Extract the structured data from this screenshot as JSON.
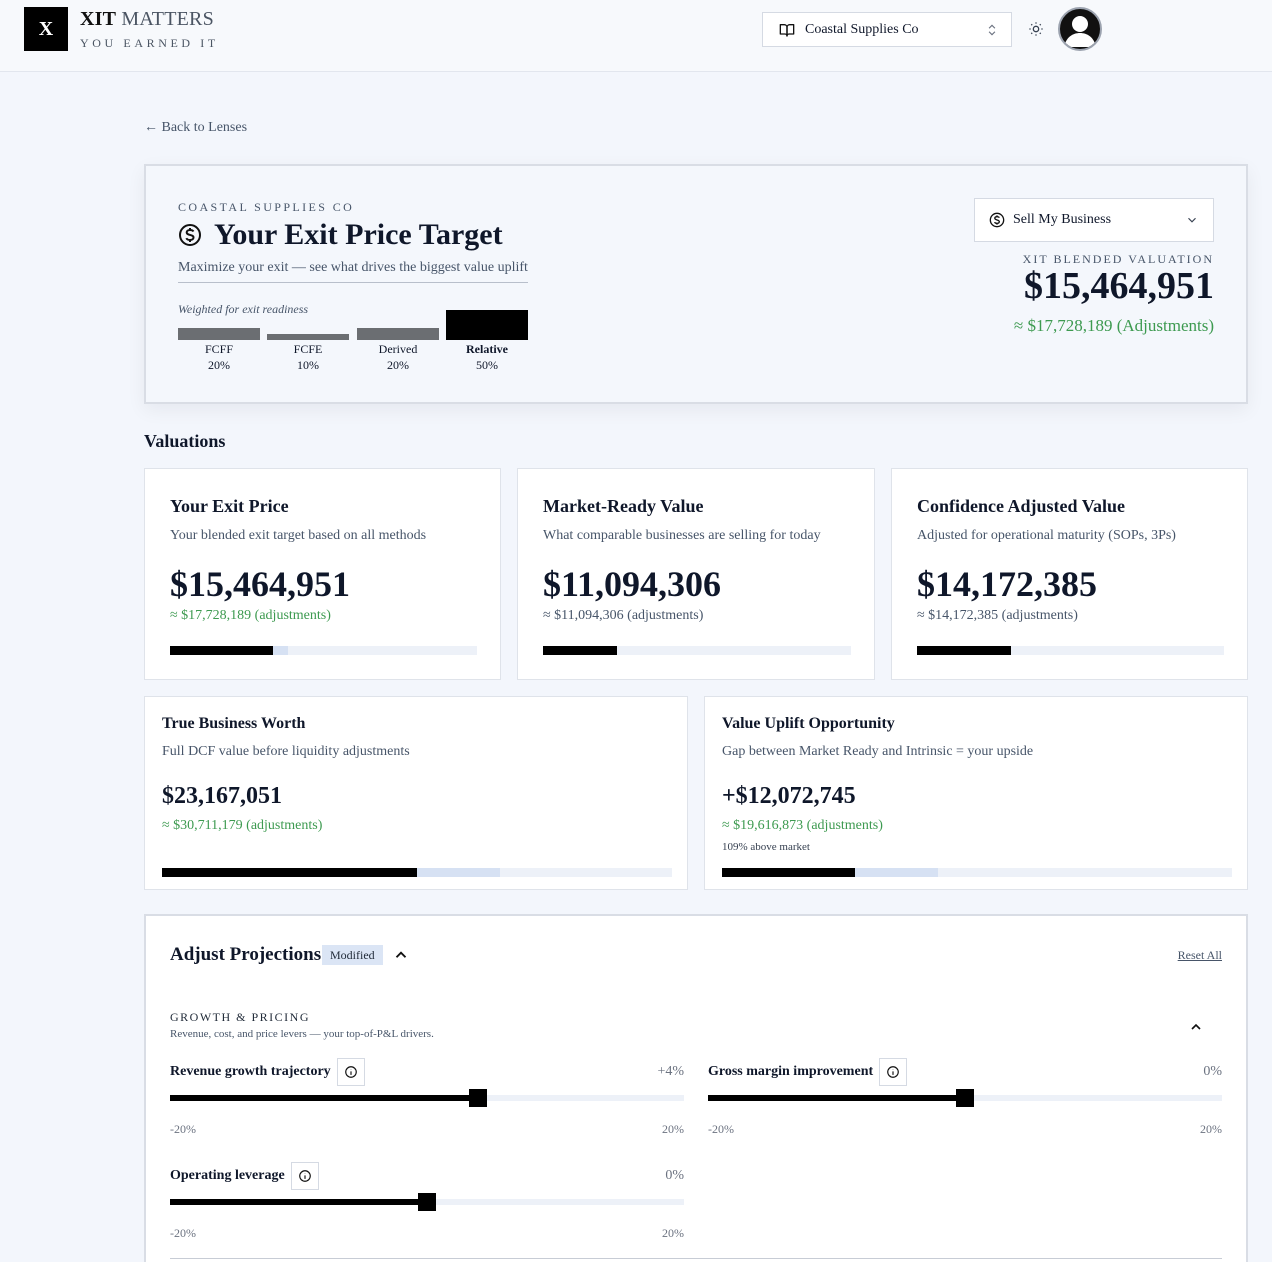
{
  "header": {
    "logo_letter": "X",
    "brand_bold": "XIT",
    "brand_rest": "MATTERS",
    "tagline": "YOU EARNED IT",
    "company_select": "Coastal Supplies Co",
    "icons": {
      "company": "book-open-icon",
      "chevron": "chevron-up-down-icon",
      "theme": "sun-icon",
      "avatar": "user-avatar-icon"
    }
  },
  "back_link": "← Back to Lenses",
  "hero": {
    "company": "COASTAL SUPPLIES CO",
    "title": "Your Exit Price Target",
    "subtitle": "Maximize your exit — see what drives the biggest value uplift",
    "weights_label": "Weighted for exit readiness",
    "weights": [
      {
        "name": "FCFF",
        "pct_label": "20%",
        "pct": 20,
        "color": "#6b6e72",
        "active": false
      },
      {
        "name": "FCFE",
        "pct_label": "10%",
        "pct": 10,
        "color": "#6b6e72",
        "active": false
      },
      {
        "name": "Derived",
        "pct_label": "20%",
        "pct": 20,
        "color": "#6b6e72",
        "active": false
      },
      {
        "name": "Relative",
        "pct_label": "50%",
        "pct": 50,
        "color": "#000000",
        "active": true
      }
    ],
    "goal_select": "Sell My Business",
    "blend_label": "XIT BLENDED VALUATION",
    "blend_value": "$15,464,951",
    "blend_adjusted": "≈ $17,728,189 (Adjustments)"
  },
  "valuations": {
    "section_title": "Valuations",
    "cards": [
      {
        "title": "Your Exit Price",
        "desc": "Your blended exit target based on all methods",
        "value": "$15,464,951",
        "adjusted": "≈ $17,728,189 (adjustments)",
        "adjusted_color": "#3d9a50",
        "fill": 0.335,
        "ext": 0.385
      },
      {
        "title": "Market-Ready Value",
        "desc": "What comparable businesses are selling for today",
        "value": "$11,094,306",
        "adjusted": "≈ $11,094,306 (adjustments)",
        "adjusted_color": "#475569",
        "fill": 0.24,
        "ext": 0.24
      },
      {
        "title": "Confidence Adjusted Value",
        "desc": "Adjusted for operational maturity (SOPs, 3Ps)",
        "value": "$14,172,385",
        "adjusted": "≈ $14,172,385 (adjustments)",
        "adjusted_color": "#475569",
        "fill": 0.307,
        "ext": 0.307
      },
      {
        "title": "True Business Worth",
        "desc": "Full DCF value before liquidity adjustments",
        "value": "$23,167,051",
        "adjusted": "≈ $30,711,179 (adjustments)",
        "adjusted_color": "#3d9a50",
        "fill": 0.5,
        "ext": 0.663
      },
      {
        "title": "Value Uplift Opportunity",
        "desc": "Gap between Market Ready and Intrinsic = your upside",
        "value": "+$12,072,745",
        "adjusted": "≈ $19,616,873 (adjustments)",
        "adjusted_color": "#3d9a50",
        "note": "109% above market",
        "fill": 0.261,
        "ext": 0.423
      }
    ]
  },
  "adjust": {
    "title": "Adjust Projections",
    "badge": "Modified",
    "reset": "Reset All",
    "group_title": "GROWTH & PRICING",
    "group_desc": "Revenue, cost, and price levers — your top-of-P&L drivers.",
    "sliders": [
      {
        "label": "Revenue growth trajectory",
        "value": "+4%",
        "position": 0.6,
        "min": "-20%",
        "max": "20%"
      },
      {
        "label": "Gross margin improvement",
        "value": "0%",
        "position": 0.5,
        "min": "-20%",
        "max": "20%"
      },
      {
        "label": "Operating leverage",
        "value": "0%",
        "position": 0.5,
        "min": "-20%",
        "max": "20%"
      }
    ]
  }
}
